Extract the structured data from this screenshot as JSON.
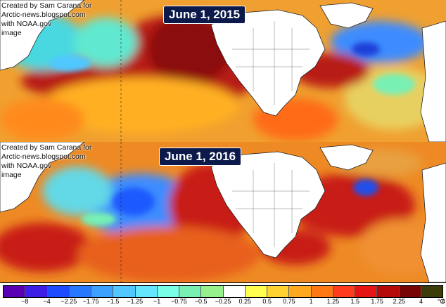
{
  "top_panel": {
    "date": "June 1, 2015",
    "credit": "Created by Sam Carana for\nArctic-news.blogspot.com\nwith NOAA.gov\nimage"
  },
  "bottom_panel": {
    "date": "June 1, 2016",
    "credit": "Created by Sam Carana for\nArctic-news.blogspot.com\nwith NOAA.gov\nimage"
  },
  "legend": {
    "unit": "°C",
    "tick_labels": [
      "−8",
      "−4",
      "−2.25",
      "−1.75",
      "−1.5",
      "−1.25",
      "−1",
      "−0.75",
      "−0.5",
      "−0.25",
      "0.25",
      "0.5",
      "0.75",
      "1",
      "1.25",
      "1.5",
      "1.75",
      "2.25",
      "4",
      "8"
    ],
    "colors": [
      "#5a00b4",
      "#3c1ee6",
      "#1e4bff",
      "#2878ff",
      "#3ca0ff",
      "#50c8ff",
      "#64e6ff",
      "#78ffe6",
      "#78f0b4",
      "#96f08c",
      "#ffffff",
      "#ffff50",
      "#ffd232",
      "#ffaa1e",
      "#ff7814",
      "#ff3c1e",
      "#e61414",
      "#b40a0a",
      "#780505",
      "#3c3c0a"
    ]
  },
  "colors": {
    "ocean_warm": "#e8781e",
    "ocean_hot": "#b41414",
    "ocean_cool": "#3ca0ff",
    "land": "#ffffff",
    "label_bg": "#0b1a4a"
  }
}
